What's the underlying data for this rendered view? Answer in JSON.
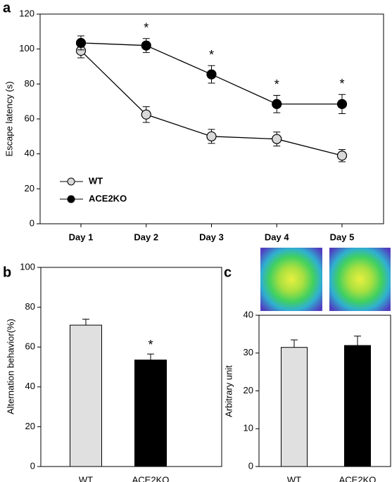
{
  "chart_data": [
    {
      "type": "line",
      "panel": "a",
      "ylabel": "Escape latency (s)",
      "categories": [
        "Day 1",
        "Day 2",
        "Day 3",
        "Day 4",
        "Day 5"
      ],
      "series": [
        {
          "name": "WT",
          "color": "#d9d9d9",
          "values": [
            99,
            62.5,
            50,
            48.5,
            39
          ],
          "errors": [
            4,
            4.5,
            4,
            4,
            3.5
          ],
          "significance": [
            null,
            null,
            null,
            null,
            null
          ]
        },
        {
          "name": "ACE2KO",
          "color": "#000000",
          "values": [
            103.5,
            102,
            85.5,
            68.5,
            68.5
          ],
          "errors": [
            4,
            4,
            5,
            5,
            5.5
          ],
          "significance": [
            null,
            "*",
            "*",
            "*",
            "*"
          ]
        }
      ],
      "ylim": [
        0,
        120
      ],
      "yticks": [
        0,
        20,
        40,
        60,
        80,
        100,
        120
      ]
    },
    {
      "type": "bar",
      "panel": "b",
      "ylabel": "Alternation behavior(%)",
      "categories": [
        "WT",
        "ACE2KO"
      ],
      "values": [
        71,
        53.5
      ],
      "errors": [
        3,
        3
      ],
      "colors": [
        "#e0e0e0",
        "#000000"
      ],
      "significance": [
        null,
        "*"
      ],
      "ylim": [
        0,
        100
      ],
      "yticks": [
        0,
        20,
        40,
        60,
        80,
        100
      ]
    },
    {
      "type": "bar",
      "panel": "c",
      "ylabel": "Arbitrary unit",
      "categories": [
        "WT",
        "ACE2KO"
      ],
      "values": [
        31.5,
        32
      ],
      "errors": [
        2,
        2.5
      ],
      "colors": [
        "#e0e0e0",
        "#000000"
      ],
      "significance": [
        null,
        null
      ],
      "ylim": [
        0,
        40
      ],
      "yticks": [
        0,
        10,
        20,
        30,
        40
      ]
    }
  ]
}
